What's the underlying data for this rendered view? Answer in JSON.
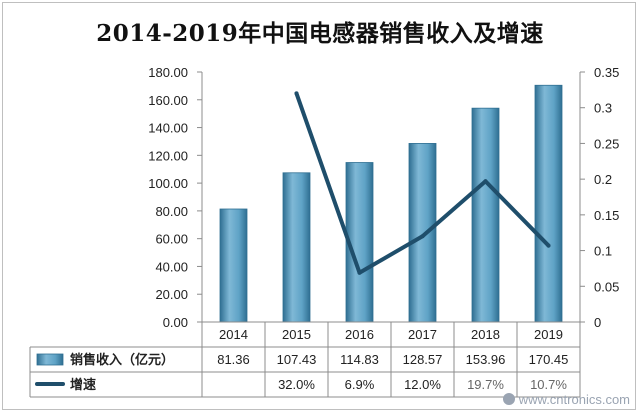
{
  "chart_data": {
    "type": "bar+line",
    "title": "2014-2019年中国电感器销售收入及增速",
    "categories": [
      "2014",
      "2015",
      "2016",
      "2017",
      "2018",
      "2019"
    ],
    "left_axis": {
      "ticks": [
        "0.00",
        "20.00",
        "40.00",
        "60.00",
        "80.00",
        "100.00",
        "120.00",
        "140.00",
        "160.00",
        "180.00"
      ],
      "ylim": [
        0,
        180
      ]
    },
    "right_axis": {
      "ticks": [
        "0",
        "0.05",
        "0.1",
        "0.15",
        "0.2",
        "0.25",
        "0.3",
        "0.35"
      ],
      "ylim": [
        0,
        0.35
      ]
    },
    "series": [
      {
        "name": "销售收入（亿元）",
        "type": "bar",
        "axis": "left",
        "values": [
          81.36,
          107.43,
          114.83,
          128.57,
          153.96,
          170.45
        ],
        "labels": [
          "81.36",
          "107.43",
          "114.83",
          "128.57",
          "153.96",
          "170.45"
        ]
      },
      {
        "name": "增速",
        "type": "line",
        "axis": "right",
        "values": [
          null,
          0.32,
          0.069,
          0.12,
          0.197,
          0.107
        ],
        "labels": [
          "",
          "32.0%",
          "6.9%",
          "12.0%",
          "19.7%",
          "10.7%"
        ]
      }
    ],
    "grid": false,
    "legend": "data-table-bottom",
    "colors": {
      "bar": "#5fa3c6",
      "bar_dark": "#2f6f92",
      "line": "#1f4e6b"
    }
  },
  "watermark": "www.cntronics.com"
}
